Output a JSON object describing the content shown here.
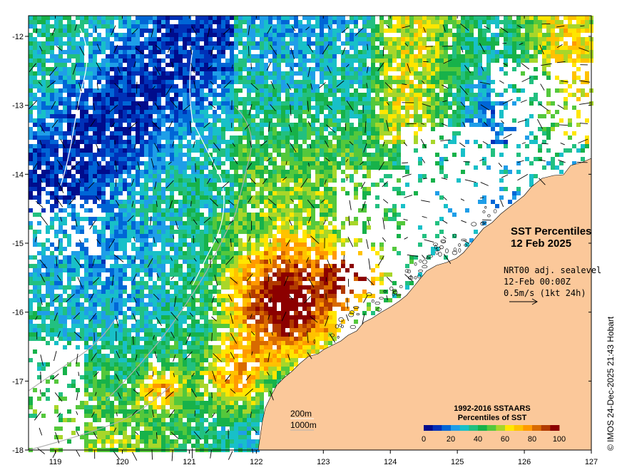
{
  "map": {
    "title_line1": "SST Percentiles",
    "title_line2": "12 Feb 2025",
    "current_info": [
      "NRT00 adj. sealevel",
      "12-Feb 00:00Z",
      "0.5m/s (1kt 24h)"
    ],
    "contour_labels": [
      "200m",
      "1000m"
    ],
    "credit": "© IMOS 24-Dec-2025 21:43 Hobart",
    "lon_ticks": [
      "119",
      "120",
      "121",
      "122",
      "123",
      "124",
      "125",
      "126",
      "127"
    ],
    "lat_ticks": [
      "-12",
      "-13",
      "-14",
      "-15",
      "-16",
      "-17",
      "-18"
    ],
    "lon_range": [
      118.6,
      127.0
    ],
    "lat_range": [
      -11.7,
      -18.0
    ],
    "colors": {
      "land": "#fbc89a",
      "contour_200m": "#ffffff",
      "contour_1000m": "#b0b0b0"
    }
  },
  "legend": {
    "title_line1": "1992-2016 SSTAARS",
    "title_line2": "Percentiles of SST",
    "ticks": [
      "0",
      "20",
      "40",
      "60",
      "80",
      "100"
    ],
    "colors": [
      "#000c8c",
      "#0031b8",
      "#0066d6",
      "#1f9ee8",
      "#18c0c8",
      "#22c080",
      "#17b24a",
      "#54c83c",
      "#a8d62a",
      "#ffe600",
      "#ffc200",
      "#ff9a00",
      "#d86a00",
      "#b23a00",
      "#8c0000"
    ]
  }
}
